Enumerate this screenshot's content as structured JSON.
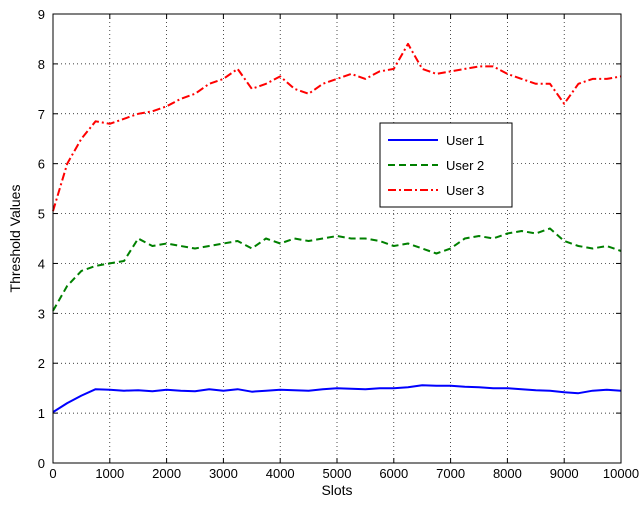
{
  "chart_data": {
    "type": "line",
    "xlabel": "Slots",
    "ylabel": "Threshold Values",
    "xlim": [
      0,
      10000
    ],
    "ylim": [
      0,
      9
    ],
    "xticks": [
      "0",
      "1000",
      "2000",
      "3000",
      "4000",
      "5000",
      "6000",
      "7000",
      "8000",
      "9000",
      "10000"
    ],
    "yticks": [
      "0",
      "1",
      "2",
      "3",
      "4",
      "5",
      "6",
      "7",
      "8",
      "9"
    ],
    "grid": true,
    "legend_position": "right",
    "x": [
      0,
      250,
      500,
      750,
      1000,
      1250,
      1500,
      1750,
      2000,
      2250,
      2500,
      2750,
      3000,
      3250,
      3500,
      3750,
      4000,
      4250,
      4500,
      4750,
      5000,
      5250,
      5500,
      5750,
      6000,
      6250,
      6500,
      6750,
      7000,
      7250,
      7500,
      7750,
      8000,
      8250,
      8500,
      8750,
      9000,
      9250,
      9500,
      9750,
      10000
    ],
    "series": [
      {
        "name": "User 1",
        "color": "#0000ff",
        "style": "solid",
        "values": [
          1.02,
          1.2,
          1.35,
          1.48,
          1.47,
          1.45,
          1.46,
          1.44,
          1.47,
          1.45,
          1.44,
          1.48,
          1.45,
          1.48,
          1.43,
          1.45,
          1.47,
          1.46,
          1.45,
          1.48,
          1.5,
          1.49,
          1.48,
          1.5,
          1.5,
          1.52,
          1.56,
          1.55,
          1.55,
          1.53,
          1.52,
          1.5,
          1.5,
          1.48,
          1.46,
          1.45,
          1.42,
          1.4,
          1.45,
          1.47,
          1.45
        ]
      },
      {
        "name": "User 2",
        "color": "#008000",
        "style": "dashed",
        "values": [
          3.05,
          3.55,
          3.85,
          3.95,
          4.0,
          4.05,
          4.5,
          4.35,
          4.4,
          4.35,
          4.3,
          4.35,
          4.4,
          4.45,
          4.3,
          4.5,
          4.4,
          4.5,
          4.45,
          4.5,
          4.55,
          4.5,
          4.5,
          4.45,
          4.35,
          4.4,
          4.3,
          4.2,
          4.3,
          4.5,
          4.55,
          4.5,
          4.6,
          4.65,
          4.6,
          4.7,
          4.45,
          4.35,
          4.3,
          4.35,
          4.25
        ]
      },
      {
        "name": "User 3",
        "color": "#ff0000",
        "style": "dashdot",
        "values": [
          5.05,
          6.0,
          6.5,
          6.85,
          6.8,
          6.9,
          7.0,
          7.05,
          7.15,
          7.3,
          7.4,
          7.6,
          7.7,
          7.9,
          7.5,
          7.6,
          7.75,
          7.5,
          7.4,
          7.6,
          7.7,
          7.8,
          7.7,
          7.85,
          7.9,
          8.4,
          7.9,
          7.8,
          7.85,
          7.9,
          7.95,
          7.95,
          7.8,
          7.7,
          7.6,
          7.6,
          7.2,
          7.6,
          7.7,
          7.7,
          7.75
        ]
      }
    ]
  }
}
